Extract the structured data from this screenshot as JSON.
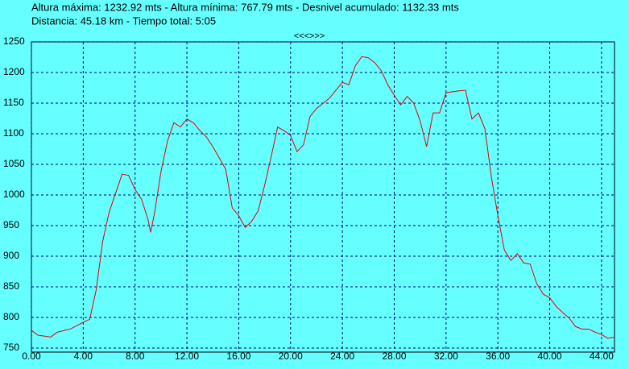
{
  "header": {
    "line1": "Altura máxima: 1232.92 mts - Altura mínima: 767.79 mts - Desnivel acumulado: 1132.33 mts",
    "line2": "Distancia: 45.18 km - Tiempo total: 5:05",
    "nav": "<<<>>>"
  },
  "chart_data": {
    "type": "line",
    "x": [
      0,
      0.5,
      1.5,
      2,
      3,
      4,
      4.5,
      5,
      5.5,
      6,
      6.5,
      7,
      7.5,
      8,
      8.5,
      9,
      9.2,
      9.5,
      10,
      10.5,
      11,
      11.5,
      12,
      12.5,
      13,
      13.5,
      14,
      15,
      15.5,
      16,
      16.5,
      17,
      17.5,
      18,
      18.5,
      19,
      19.5,
      20,
      20.5,
      21,
      21.5,
      22,
      23,
      24,
      24.5,
      25,
      25.5,
      26,
      26.5,
      27,
      27.5,
      28,
      28.5,
      29,
      29.5,
      30,
      30.5,
      31,
      31.5,
      32,
      33,
      33.5,
      34,
      34.5,
      35,
      35.5,
      36,
      36.5,
      37,
      37.5,
      38,
      38.5,
      39,
      39.5,
      40,
      40.5,
      41,
      41.5,
      42,
      42.5,
      43,
      43.5,
      44,
      44.5,
      45
    ],
    "series": [
      {
        "color": "#e00000",
        "values": [
          779,
          771,
          768,
          776,
          781,
          792,
          797,
          845,
          924,
          972,
          1003,
          1034,
          1032,
          1009,
          993,
          960,
          939,
          970,
          1038,
          1088,
          1118,
          1111,
          1124,
          1118,
          1105,
          1095,
          1079,
          1042,
          979,
          966,
          947,
          957,
          974,
          1016,
          1062,
          1111,
          1105,
          1097,
          1071,
          1082,
          1128,
          1141,
          1158,
          1184,
          1180,
          1211,
          1226,
          1224,
          1216,
          1203,
          1180,
          1163,
          1147,
          1161,
          1150,
          1121,
          1079,
          1134,
          1134,
          1167,
          1170,
          1171,
          1124,
          1134,
          1108,
          1029,
          966,
          910,
          893,
          904,
          889,
          887,
          855,
          838,
          832,
          818,
          808,
          799,
          785,
          781,
          781,
          776,
          772,
          766,
          768
        ]
      }
    ],
    "xlim": [
      0,
      45
    ],
    "ylim": [
      750,
      1250
    ],
    "xticks": [
      {
        "value": 0,
        "label": "0.00"
      },
      {
        "value": 4,
        "label": "4.00"
      },
      {
        "value": 8,
        "label": "8.00"
      },
      {
        "value": 12,
        "label": "12.00"
      },
      {
        "value": 16,
        "label": "16.00"
      },
      {
        "value": 20,
        "label": "20.00"
      },
      {
        "value": 24,
        "label": "24.00"
      },
      {
        "value": 28,
        "label": "28.00"
      },
      {
        "value": 32,
        "label": "32.00"
      },
      {
        "value": 36,
        "label": "36.00"
      },
      {
        "value": 40,
        "label": "40.00"
      },
      {
        "value": 44,
        "label": "44.00"
      }
    ],
    "yticks": [
      750,
      800,
      850,
      900,
      950,
      1000,
      1050,
      1100,
      1150,
      1200,
      1250
    ],
    "grid": true
  }
}
